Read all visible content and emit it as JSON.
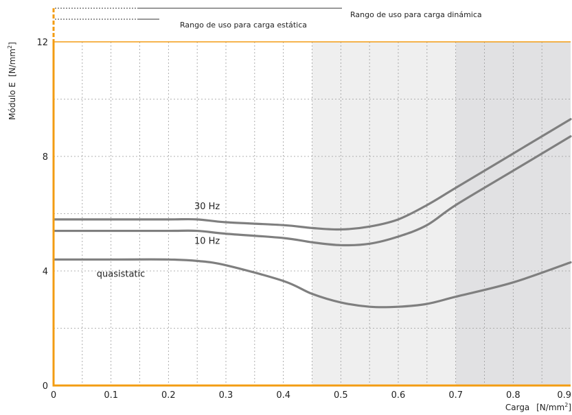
{
  "chart_data": {
    "type": "line",
    "xlabel": "Carga",
    "xunit": "[N/mm",
    "xunit_sup": "2",
    "xunit_end": "]",
    "ylabel": "Módulo E",
    "yunit": "[N/mm",
    "yunit_sup": "2",
    "yunit_end": "]",
    "xlim": [
      0,
      0.9
    ],
    "ylim": [
      0,
      12
    ],
    "x_ticks": [
      0,
      0.1,
      0.2,
      0.3,
      0.4,
      0.5,
      0.6,
      0.7,
      0.8,
      0.9
    ],
    "x_tick_labels": [
      "0",
      "0.1",
      "0.2",
      "0.3",
      "0.4",
      "0.5",
      "0.6",
      "0.7",
      "0.8",
      "0.9"
    ],
    "y_ticks": [
      0,
      4,
      8,
      12
    ],
    "y_tick_labels": [
      "0",
      "4",
      "8",
      "12"
    ],
    "grid": true,
    "regions": [
      {
        "label": "Rango de uso para carga estática",
        "x0": 0,
        "x1": 0.45,
        "color": "#ffffff"
      },
      {
        "label": "Rango de uso para carga dinámica",
        "x0": 0.45,
        "x1": 0.7,
        "color": "#efefef"
      },
      {
        "label": "",
        "x0": 0.7,
        "x1": 0.9,
        "color": "#e1e1e3"
      }
    ],
    "series": [
      {
        "name": "30 Hz",
        "x": [
          0,
          0.1,
          0.2,
          0.25,
          0.3,
          0.4,
          0.45,
          0.5,
          0.55,
          0.6,
          0.65,
          0.7,
          0.8,
          0.9
        ],
        "y": [
          5.8,
          5.8,
          5.8,
          5.8,
          5.7,
          5.6,
          5.5,
          5.45,
          5.55,
          5.8,
          6.3,
          6.9,
          8.1,
          9.3
        ]
      },
      {
        "name": "10 Hz",
        "x": [
          0,
          0.1,
          0.2,
          0.25,
          0.3,
          0.4,
          0.45,
          0.5,
          0.55,
          0.6,
          0.65,
          0.7,
          0.8,
          0.9
        ],
        "y": [
          5.4,
          5.4,
          5.4,
          5.4,
          5.3,
          5.15,
          5.0,
          4.9,
          4.95,
          5.2,
          5.6,
          6.3,
          7.5,
          8.7
        ]
      },
      {
        "name": "quasistatic",
        "x": [
          0,
          0.1,
          0.2,
          0.25,
          0.3,
          0.4,
          0.45,
          0.5,
          0.55,
          0.6,
          0.65,
          0.7,
          0.8,
          0.9
        ],
        "y": [
          4.4,
          4.4,
          4.4,
          4.35,
          4.2,
          3.65,
          3.2,
          2.9,
          2.75,
          2.75,
          2.85,
          3.1,
          3.6,
          4.3
        ]
      }
    ],
    "colors": {
      "axis": "#f39c12",
      "series": "#7f7f7f",
      "grid": "#999999"
    }
  }
}
